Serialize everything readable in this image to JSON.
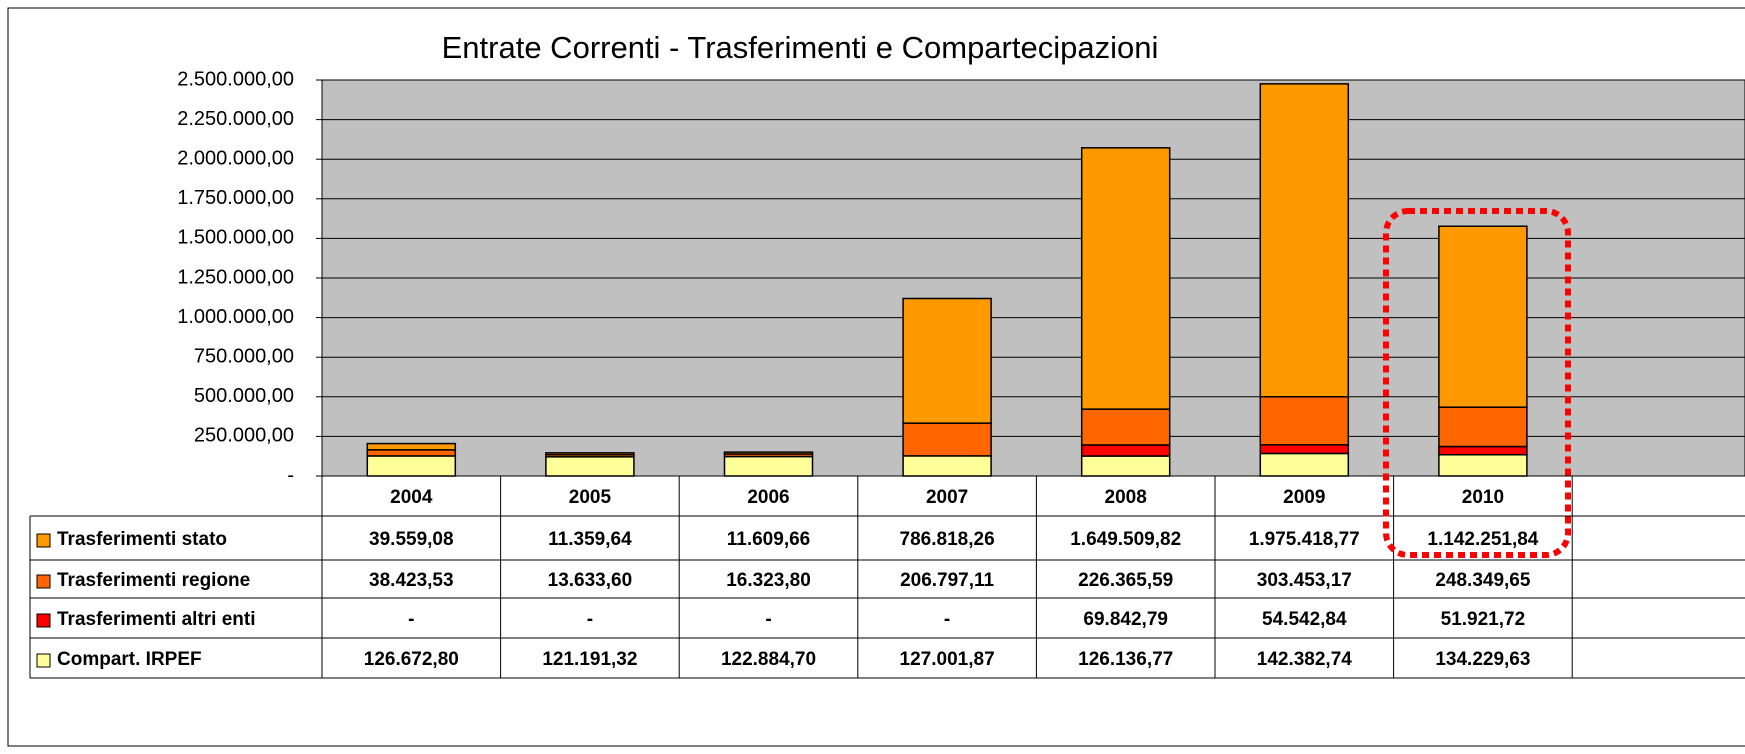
{
  "chart_data": {
    "type": "stacked_bar",
    "title": "Entrate Correnti - Trasferimenti e Compartecipazioni",
    "categories": [
      "2004",
      "2005",
      "2006",
      "2007",
      "2008",
      "2009",
      "2010"
    ],
    "series": [
      {
        "name": "Trasferimenti stato",
        "color": "#FF9900",
        "values": [
          39559.08,
          11359.64,
          11609.66,
          786818.26,
          1649509.82,
          1975418.77,
          1142251.84
        ],
        "value_labels": [
          "39.559,08",
          "11.359,64",
          "11.609,66",
          "786.818,26",
          "1.649.509,82",
          "1.975.418,77",
          "1.142.251,84"
        ]
      },
      {
        "name": "Trasferimenti regione",
        "color": "#FF6600",
        "values": [
          38423.53,
          13633.6,
          16323.8,
          206797.11,
          226365.59,
          303453.17,
          248349.65
        ],
        "value_labels": [
          "38.423,53",
          "13.633,60",
          "16.323,80",
          "206.797,11",
          "226.365,59",
          "303.453,17",
          "248.349,65"
        ]
      },
      {
        "name": "Trasferimenti altri enti",
        "color": "#FF0000",
        "values": [
          0,
          0,
          0,
          0,
          69842.79,
          54542.84,
          51921.72
        ],
        "value_labels": [
          "-",
          "-",
          "-",
          "-",
          "69.842,79",
          "54.542,84",
          "51.921,72"
        ]
      },
      {
        "name": "Compart. IRPEF",
        "color": "#FFFF99",
        "values": [
          126672.8,
          121191.32,
          122884.7,
          127001.87,
          126136.77,
          142382.74,
          134229.63
        ],
        "value_labels": [
          "126.672,80",
          "121.191,32",
          "122.884,70",
          "127.001,87",
          "126.136,77",
          "142.382,74",
          "134.229,63"
        ]
      }
    ],
    "ylim": [
      0,
      2500000
    ],
    "yticks": [
      {
        "value": 0,
        "label": "-"
      },
      {
        "value": 250000,
        "label": "250.000,00"
      },
      {
        "value": 500000,
        "label": "500.000,00"
      },
      {
        "value": 750000,
        "label": "750.000,00"
      },
      {
        "value": 1000000,
        "label": "1.000.000,00"
      },
      {
        "value": 1250000,
        "label": "1.250.000,00"
      },
      {
        "value": 1500000,
        "label": "1.500.000,00"
      },
      {
        "value": 1750000,
        "label": "1.750.000,00"
      },
      {
        "value": 2000000,
        "label": "2.000.000,00"
      },
      {
        "value": 2250000,
        "label": "2.250.000,00"
      },
      {
        "value": 2500000,
        "label": "2.500.000,00"
      }
    ],
    "grid": true,
    "plot_background": "#C0C0C0"
  }
}
